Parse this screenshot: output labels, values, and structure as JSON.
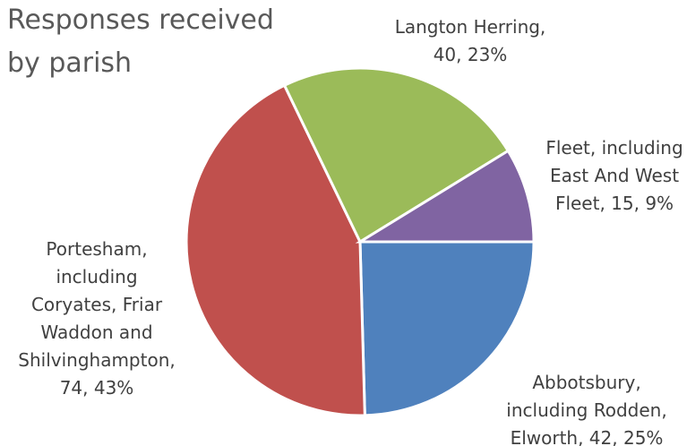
{
  "chart_data": {
    "type": "pie",
    "title": "Responses received by parish",
    "values": [
      42,
      74,
      40,
      15
    ],
    "value_labels": [
      "Abbotsbury, including Rodden, Elworth, 42, 25%",
      "Portesham, including Coryates, Friar Waddon and Shilvinghampton, 74, 43%",
      "Langton Herring, 40, 23%",
      "Fleet, including East And West Fleet, 15, 9%"
    ],
    "colors": [
      "#4f81bd",
      "#c0504d",
      "#9bbb59",
      "#8064a2"
    ]
  }
}
